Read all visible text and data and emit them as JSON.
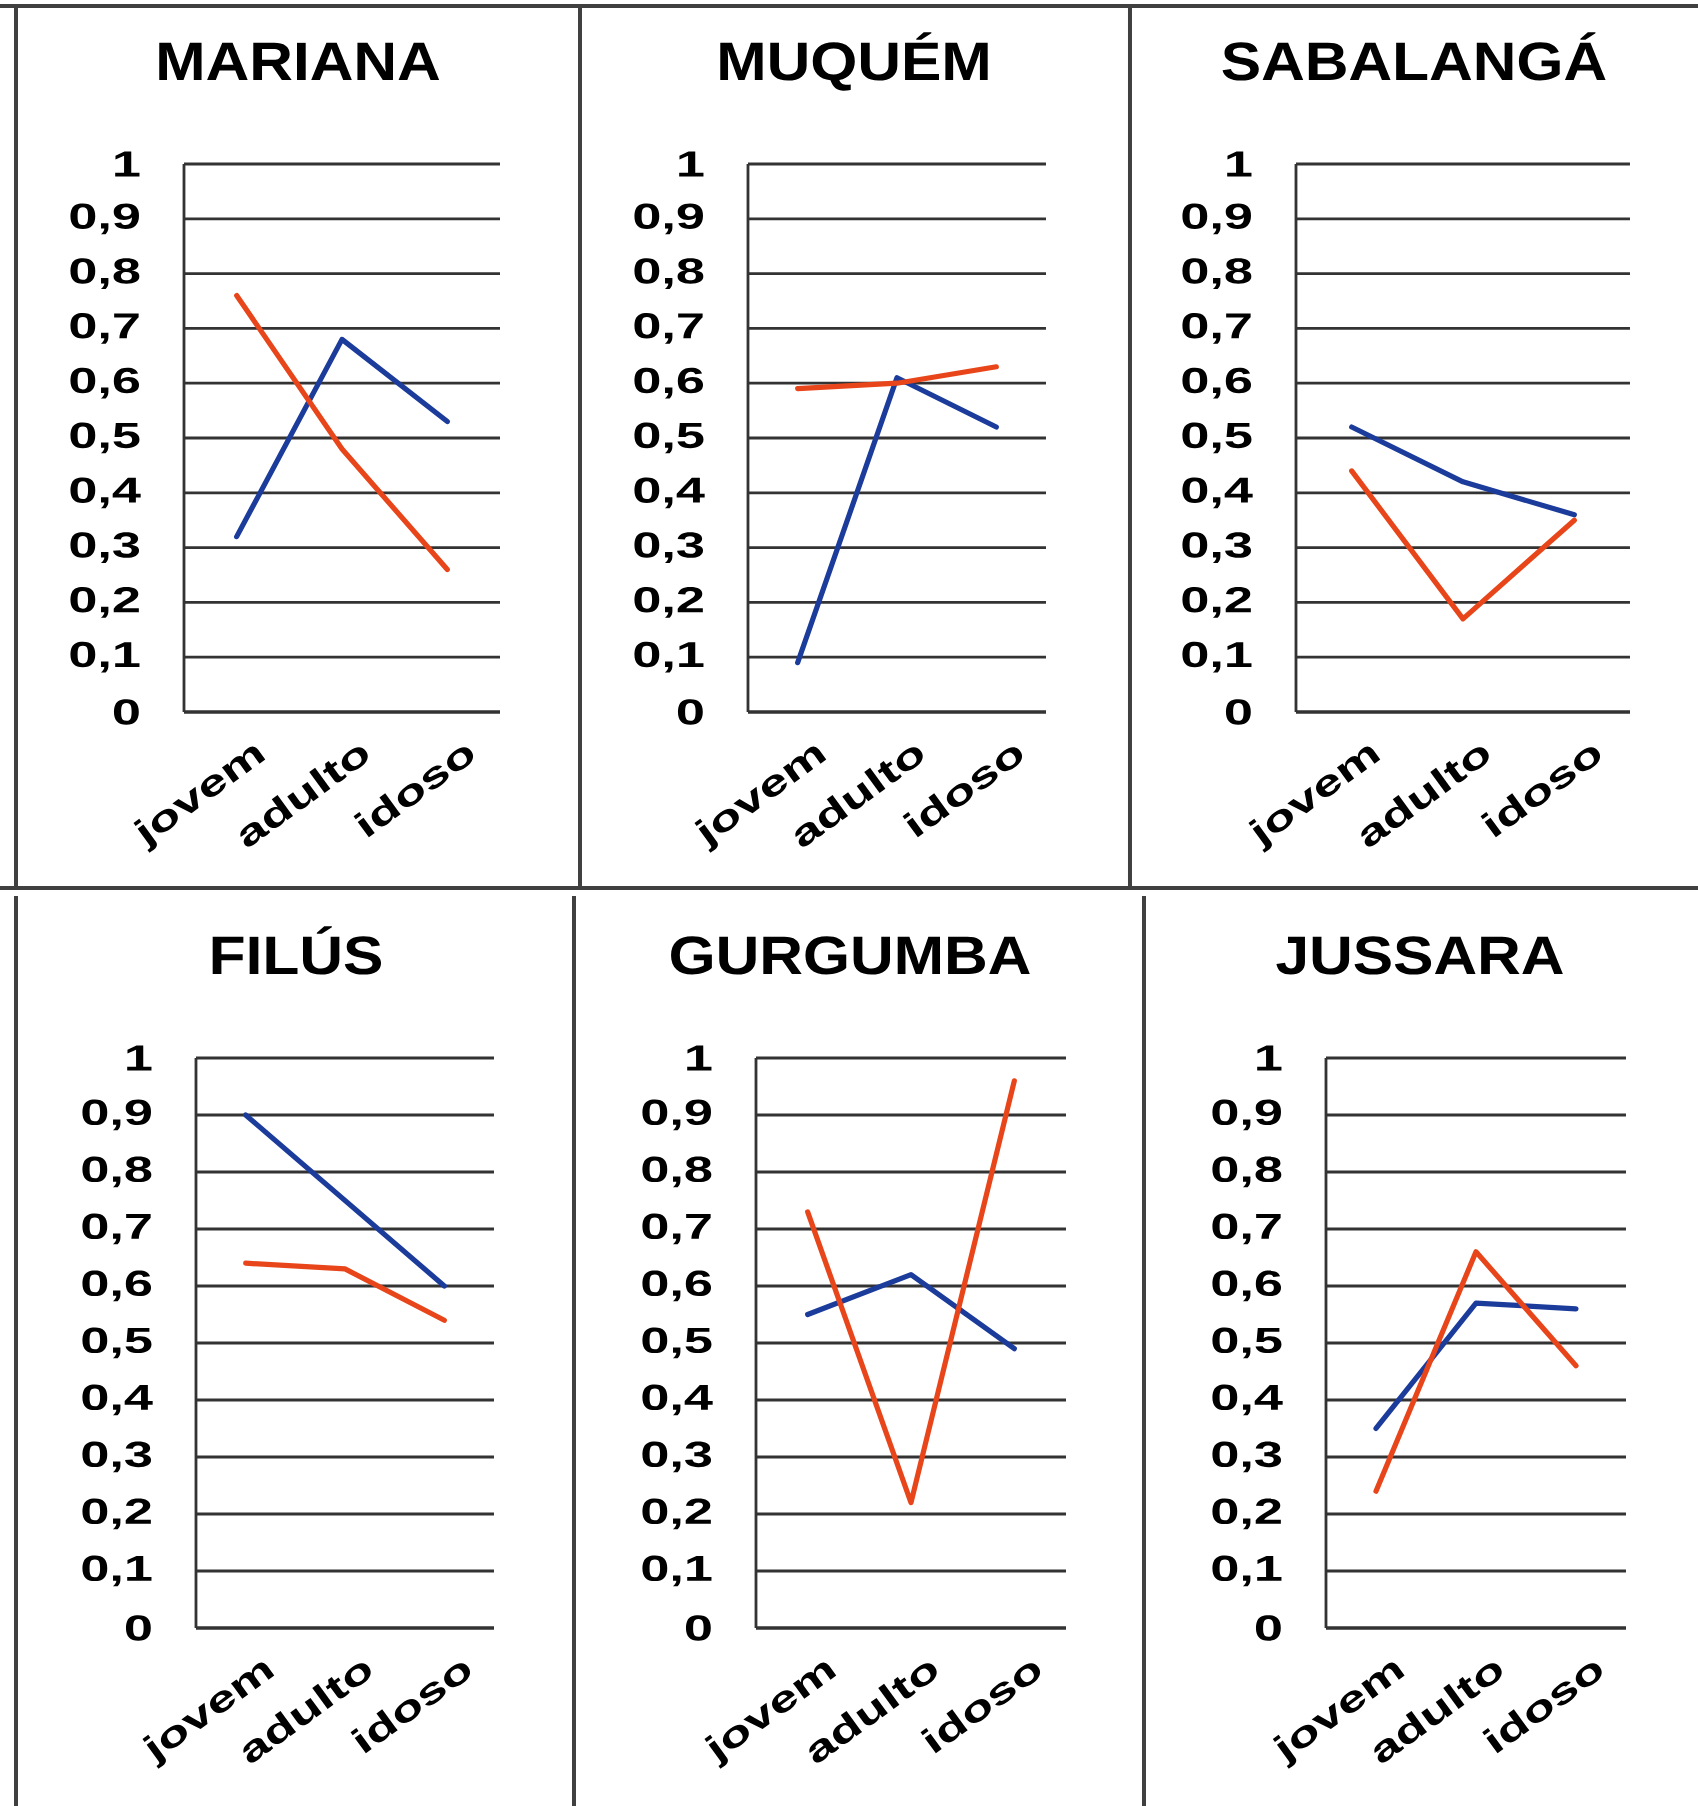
{
  "chart_data": [
    {
      "type": "line",
      "title": "MARIANA",
      "categories": [
        "jovem",
        "adulto",
        "idoso"
      ],
      "series": [
        {
          "color": "#1c3c9c",
          "values": [
            0.32,
            0.68,
            0.53
          ]
        },
        {
          "color": "#e8461a",
          "values": [
            0.76,
            0.48,
            0.26
          ]
        }
      ],
      "ylim": [
        0,
        1
      ],
      "yticks": [
        0,
        {
          "value": 0.1,
          "label": "0,1"
        },
        {
          "value": 0.2,
          "label": "0,2"
        },
        {
          "value": 0.3,
          "label": "0,3"
        },
        {
          "value": 0.4,
          "label": "0,4"
        },
        {
          "value": 0.5,
          "label": "0,5"
        },
        {
          "value": 0.6,
          "label": "0,6"
        },
        {
          "value": 0.7,
          "label": "0,7"
        },
        {
          "value": 0.8,
          "label": "0,8"
        },
        {
          "value": 0.9,
          "label": "0,9"
        },
        1
      ],
      "grid": "y"
    },
    {
      "type": "line",
      "title": "MUQUÉM",
      "categories": [
        "jovem",
        "adulto",
        "idoso"
      ],
      "series": [
        {
          "color": "#1c3c9c",
          "values": [
            0.09,
            0.61,
            0.52
          ]
        },
        {
          "color": "#e8461a",
          "values": [
            0.59,
            0.6,
            0.63
          ]
        }
      ],
      "ylim": [
        0,
        1
      ],
      "yticks": [
        0,
        {
          "value": 0.1,
          "label": "0,1"
        },
        {
          "value": 0.2,
          "label": "0,2"
        },
        {
          "value": 0.3,
          "label": "0,3"
        },
        {
          "value": 0.4,
          "label": "0,4"
        },
        {
          "value": 0.5,
          "label": "0,5"
        },
        {
          "value": 0.6,
          "label": "0,6"
        },
        {
          "value": 0.7,
          "label": "0,7"
        },
        {
          "value": 0.8,
          "label": "0,8"
        },
        {
          "value": 0.9,
          "label": "0,9"
        },
        1
      ],
      "grid": "y"
    },
    {
      "type": "line",
      "title": "SABALANGÁ",
      "categories": [
        "jovem",
        "adulto",
        "idoso"
      ],
      "series": [
        {
          "color": "#1c3c9c",
          "values": [
            0.52,
            0.42,
            0.36
          ]
        },
        {
          "color": "#e8461a",
          "values": [
            0.44,
            0.17,
            0.35
          ]
        }
      ],
      "ylim": [
        0,
        1
      ],
      "yticks": [
        0,
        {
          "value": 0.1,
          "label": "0,1"
        },
        {
          "value": 0.2,
          "label": "0,2"
        },
        {
          "value": 0.3,
          "label": "0,3"
        },
        {
          "value": 0.4,
          "label": "0,4"
        },
        {
          "value": 0.5,
          "label": "0,5"
        },
        {
          "value": 0.6,
          "label": "0,6"
        },
        {
          "value": 0.7,
          "label": "0,7"
        },
        {
          "value": 0.8,
          "label": "0,8"
        },
        {
          "value": 0.9,
          "label": "0,9"
        },
        1
      ],
      "grid": "y"
    },
    {
      "type": "line",
      "title": "FILÚS",
      "categories": [
        "jovem",
        "adulto",
        "idoso"
      ],
      "series": [
        {
          "color": "#1c3c9c",
          "values": [
            0.9,
            0.75,
            0.6
          ]
        },
        {
          "color": "#e8461a",
          "values": [
            0.64,
            0.63,
            0.54
          ]
        }
      ],
      "ylim": [
        0,
        1
      ],
      "yticks": [
        0,
        {
          "value": 0.1,
          "label": "0,1"
        },
        {
          "value": 0.2,
          "label": "0,2"
        },
        {
          "value": 0.3,
          "label": "0,3"
        },
        {
          "value": 0.4,
          "label": "0,4"
        },
        {
          "value": 0.5,
          "label": "0,5"
        },
        {
          "value": 0.6,
          "label": "0,6"
        },
        {
          "value": 0.7,
          "label": "0,7"
        },
        {
          "value": 0.8,
          "label": "0,8"
        },
        {
          "value": 0.9,
          "label": "0,9"
        },
        1
      ],
      "grid": "y"
    },
    {
      "type": "line",
      "title": "GURGUMBA",
      "categories": [
        "jovem",
        "adulto",
        "idoso"
      ],
      "series": [
        {
          "color": "#1c3c9c",
          "values": [
            0.55,
            0.62,
            0.49
          ]
        },
        {
          "color": "#e8461a",
          "values": [
            0.73,
            0.22,
            0.96
          ]
        }
      ],
      "ylim": [
        0,
        1
      ],
      "yticks": [
        0,
        {
          "value": 0.1,
          "label": "0,1"
        },
        {
          "value": 0.2,
          "label": "0,2"
        },
        {
          "value": 0.3,
          "label": "0,3"
        },
        {
          "value": 0.4,
          "label": "0,4"
        },
        {
          "value": 0.5,
          "label": "0,5"
        },
        {
          "value": 0.6,
          "label": "0,6"
        },
        {
          "value": 0.7,
          "label": "0,7"
        },
        {
          "value": 0.8,
          "label": "0,8"
        },
        {
          "value": 0.9,
          "label": "0,9"
        },
        1
      ],
      "grid": "y"
    },
    {
      "type": "line",
      "title": "JUSSARA",
      "categories": [
        "jovem",
        "adulto",
        "idoso"
      ],
      "series": [
        {
          "color": "#1c3c9c",
          "values": [
            0.35,
            0.57,
            0.56
          ]
        },
        {
          "color": "#e8461a",
          "values": [
            0.24,
            0.66,
            0.46
          ]
        }
      ],
      "ylim": [
        0,
        1
      ],
      "yticks": [
        0,
        {
          "value": 0.1,
          "label": "0,1"
        },
        {
          "value": 0.2,
          "label": "0,2"
        },
        {
          "value": 0.3,
          "label": "0,3"
        },
        {
          "value": 0.4,
          "label": "0,4"
        },
        {
          "value": 0.5,
          "label": "0,5"
        },
        {
          "value": 0.6,
          "label": "0,6"
        },
        {
          "value": 0.7,
          "label": "0,7"
        },
        {
          "value": 0.8,
          "label": "0,8"
        },
        {
          "value": 0.9,
          "label": "0,9"
        },
        1
      ],
      "grid": "y"
    }
  ]
}
